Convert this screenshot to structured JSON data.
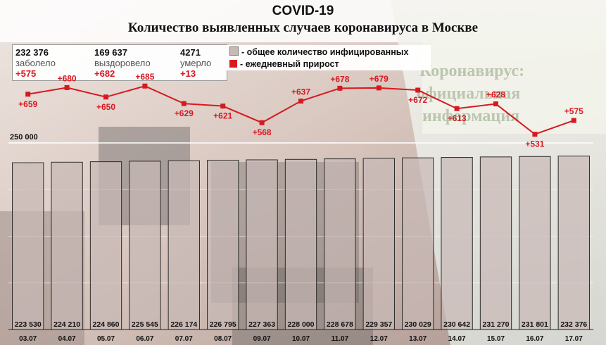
{
  "header": {
    "title": "COVID-19",
    "subtitle": "Количество выявленных случаев коронавируса в  Москве"
  },
  "stats": [
    {
      "value": "232 376",
      "label": "заболело",
      "delta": "+575"
    },
    {
      "value": "169 637",
      "label": "выздоровело",
      "delta": "+682"
    },
    {
      "value": "4271",
      "label": "умерло",
      "delta": "+13"
    }
  ],
  "legend": [
    {
      "label": "- общее количество инфицированных",
      "color": "#c8b9b5"
    },
    {
      "label": "- ежедневный прирост",
      "color": "#d71920"
    }
  ],
  "background": {
    "sign_line1": "Коронавирус:",
    "sign_line2": "официальная",
    "sign_line3": "информация"
  },
  "chart_data": {
    "type": "bar",
    "categories": [
      "03.07",
      "04.07",
      "05.07",
      "06.07",
      "07.07",
      "08.07",
      "09.07",
      "10.07",
      "11.07",
      "12.07",
      "13.07",
      "14.07",
      "15.07",
      "16.07",
      "17.07"
    ],
    "series": [
      {
        "name": "- общее количество инфицированных",
        "type": "bar",
        "values": [
          223530,
          224210,
          224860,
          225545,
          226174,
          226795,
          227363,
          228000,
          228678,
          229357,
          230029,
          230642,
          231270,
          231801,
          232376
        ],
        "labels": [
          "223 530",
          "224 210",
          "224 860",
          "225 545",
          "226 174",
          "226 795",
          "227 363",
          "228 000",
          "228 678",
          "229 357",
          "230 029",
          "230 642",
          "231 270",
          "231 801",
          "232 376"
        ]
      },
      {
        "name": "- ежедневный прирост",
        "type": "line",
        "values": [
          659,
          680,
          650,
          685,
          629,
          621,
          568,
          637,
          678,
          679,
          672,
          613,
          628,
          531,
          575
        ],
        "labels": [
          "+659",
          "+680",
          "+650",
          "+685",
          "+629",
          "+621",
          "+568",
          "+637",
          "+678",
          "+679",
          "+672",
          "+613",
          "+628",
          "+531",
          "+575"
        ]
      }
    ],
    "ylim": [
      0,
      250000
    ],
    "y_tick_label": "250 000",
    "grid": true,
    "colors": {
      "bar": "#c8b9b5",
      "line": "#d71920"
    }
  }
}
